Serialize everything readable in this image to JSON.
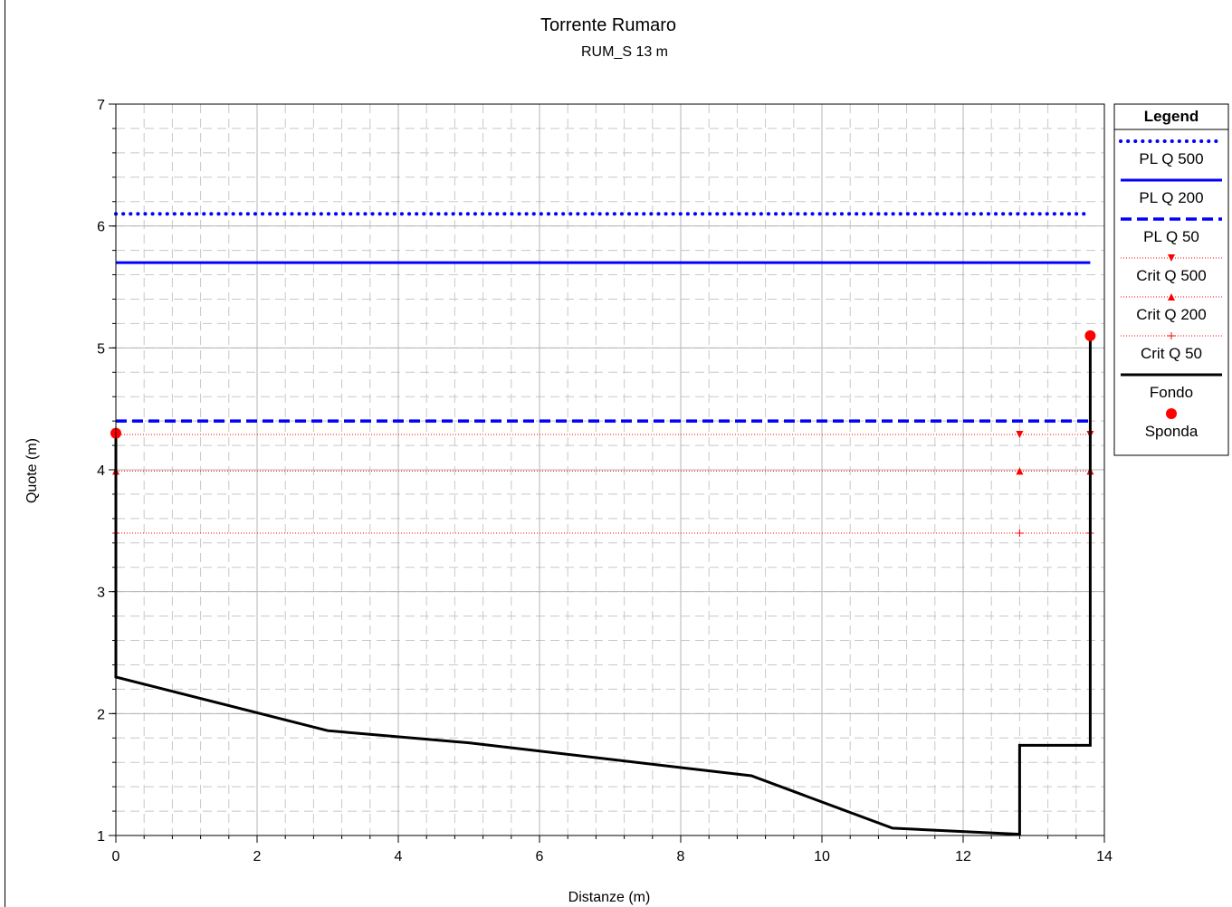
{
  "chart_data": {
    "type": "line",
    "title": "Torrente Rumaro",
    "subtitle": "RUM_S 13 m",
    "xlabel": "Distanze (m)",
    "ylabel": "Quote (m)",
    "xlim": [
      0,
      14
    ],
    "ylim": [
      1,
      7
    ],
    "xticks": [
      0,
      2,
      4,
      6,
      8,
      10,
      12,
      14
    ],
    "yticks": [
      1,
      2,
      3,
      4,
      5,
      6,
      7
    ],
    "grid": true,
    "legend_title": "Legend",
    "legend_position": "right",
    "series": [
      {
        "name": "PL Q 500",
        "style": "dotted",
        "color": "#0000ff",
        "x": [
          0,
          13.8
        ],
        "y": [
          6.1,
          6.1
        ]
      },
      {
        "name": "PL Q 200",
        "style": "solid",
        "color": "#0000ff",
        "x": [
          0,
          13.8
        ],
        "y": [
          5.7,
          5.7
        ]
      },
      {
        "name": "PL Q 50",
        "style": "dashed",
        "color": "#0000ff",
        "x": [
          0,
          13.8
        ],
        "y": [
          4.4,
          4.4
        ]
      },
      {
        "name": "Crit Q 500",
        "style": "thin-dotted",
        "marker": "triangle-down",
        "color": "#ff0000",
        "x": [
          0,
          12.8,
          13.8
        ],
        "y": [
          4.29,
          4.29,
          4.29
        ]
      },
      {
        "name": "Crit Q 200",
        "style": "thin-dotted",
        "marker": "triangle-up",
        "color": "#ff0000",
        "x": [
          0,
          12.8,
          13.8
        ],
        "y": [
          3.99,
          3.99,
          3.99
        ]
      },
      {
        "name": "Crit Q 50",
        "style": "thin-dotted",
        "marker": "plus",
        "color": "#ff0000",
        "x": [
          0,
          12.8,
          13.8
        ],
        "y": [
          3.48,
          3.48,
          3.48
        ]
      },
      {
        "name": "Fondo",
        "style": "solid",
        "color": "#000000",
        "x": [
          0,
          0,
          3,
          5,
          9,
          11,
          12.8,
          12.8,
          13.8,
          13.8
        ],
        "y": [
          4.3,
          2.3,
          1.86,
          1.76,
          1.49,
          1.06,
          1.01,
          1.74,
          1.74,
          5.1
        ]
      },
      {
        "name": "Sponda",
        "style": "markers",
        "marker": "circle",
        "color": "#ff0000",
        "x": [
          0,
          13.8
        ],
        "y": [
          4.3,
          5.1
        ]
      }
    ]
  }
}
